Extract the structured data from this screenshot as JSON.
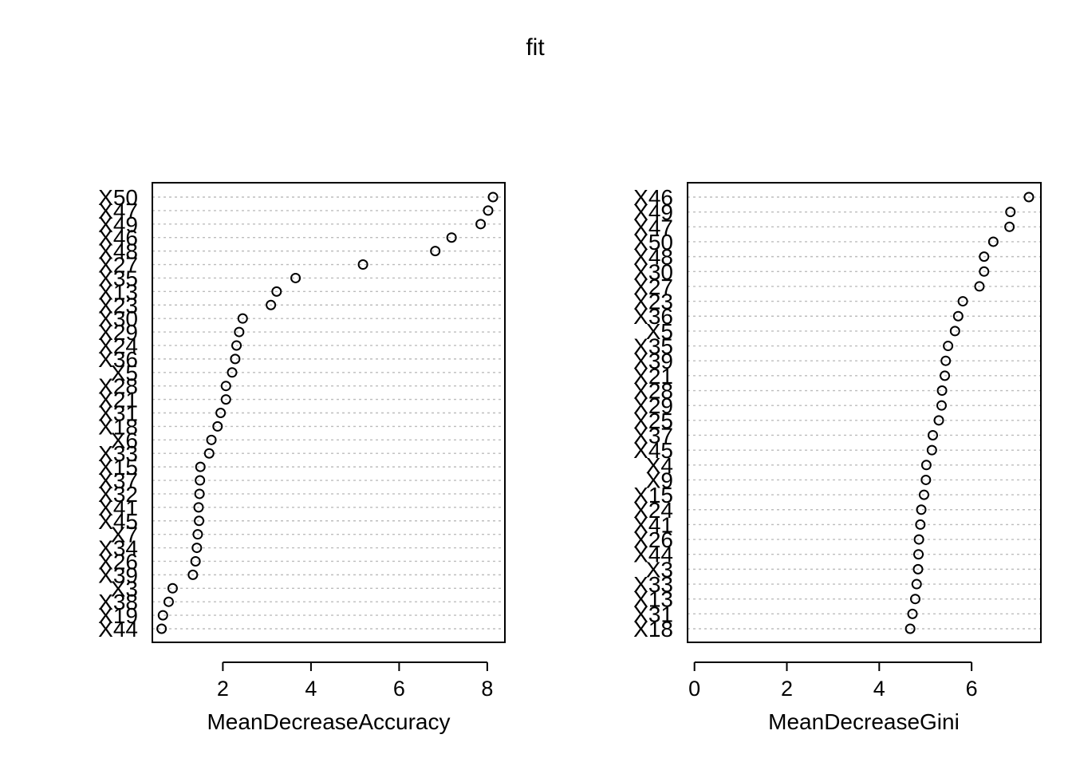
{
  "chart_data": [
    {
      "type": "scatter",
      "title": "fit",
      "xlabel": "MeanDecreaseAccuracy",
      "ylabel": "",
      "xlim": [
        0.4,
        8.4
      ],
      "xticks": [
        2,
        4,
        6,
        8
      ],
      "grid": "horizontal dotted guide lines",
      "categories": [
        "X50",
        "X47",
        "X49",
        "X46",
        "X48",
        "X27",
        "X35",
        "X13",
        "X23",
        "X30",
        "X29",
        "X24",
        "X36",
        "X5",
        "X28",
        "X21",
        "X31",
        "X18",
        "X6",
        "X33",
        "X15",
        "X37",
        "X32",
        "X41",
        "X45",
        "X7",
        "X34",
        "X26",
        "X39",
        "X3",
        "X38",
        "X19",
        "X44"
      ],
      "values": [
        8.13,
        8.02,
        7.85,
        7.19,
        6.82,
        5.18,
        3.65,
        3.22,
        3.09,
        2.45,
        2.37,
        2.31,
        2.28,
        2.21,
        2.07,
        2.07,
        1.95,
        1.88,
        1.74,
        1.69,
        1.49,
        1.48,
        1.47,
        1.45,
        1.46,
        1.43,
        1.41,
        1.38,
        1.32,
        0.86,
        0.77,
        0.64,
        0.61
      ]
    },
    {
      "type": "scatter",
      "title": "",
      "xlabel": "MeanDecreaseGini",
      "ylabel": "",
      "xlim": [
        -0.15,
        7.5
      ],
      "xticks": [
        0,
        2,
        4,
        6
      ],
      "grid": "horizontal dotted guide lines",
      "categories": [
        "X46",
        "X49",
        "X47",
        "X50",
        "X48",
        "X30",
        "X27",
        "X23",
        "X36",
        "X5",
        "X35",
        "X39",
        "X21",
        "X28",
        "X29",
        "X25",
        "X37",
        "X45",
        "X4",
        "X9",
        "X15",
        "X24",
        "X41",
        "X26",
        "X44",
        "X3",
        "X33",
        "X13",
        "X31",
        "X18"
      ],
      "values": [
        7.24,
        6.84,
        6.82,
        6.47,
        6.27,
        6.27,
        6.17,
        5.81,
        5.71,
        5.64,
        5.49,
        5.44,
        5.42,
        5.36,
        5.35,
        5.29,
        5.16,
        5.14,
        5.02,
        5.01,
        4.97,
        4.91,
        4.89,
        4.86,
        4.85,
        4.84,
        4.81,
        4.78,
        4.72,
        4.67
      ]
    }
  ]
}
